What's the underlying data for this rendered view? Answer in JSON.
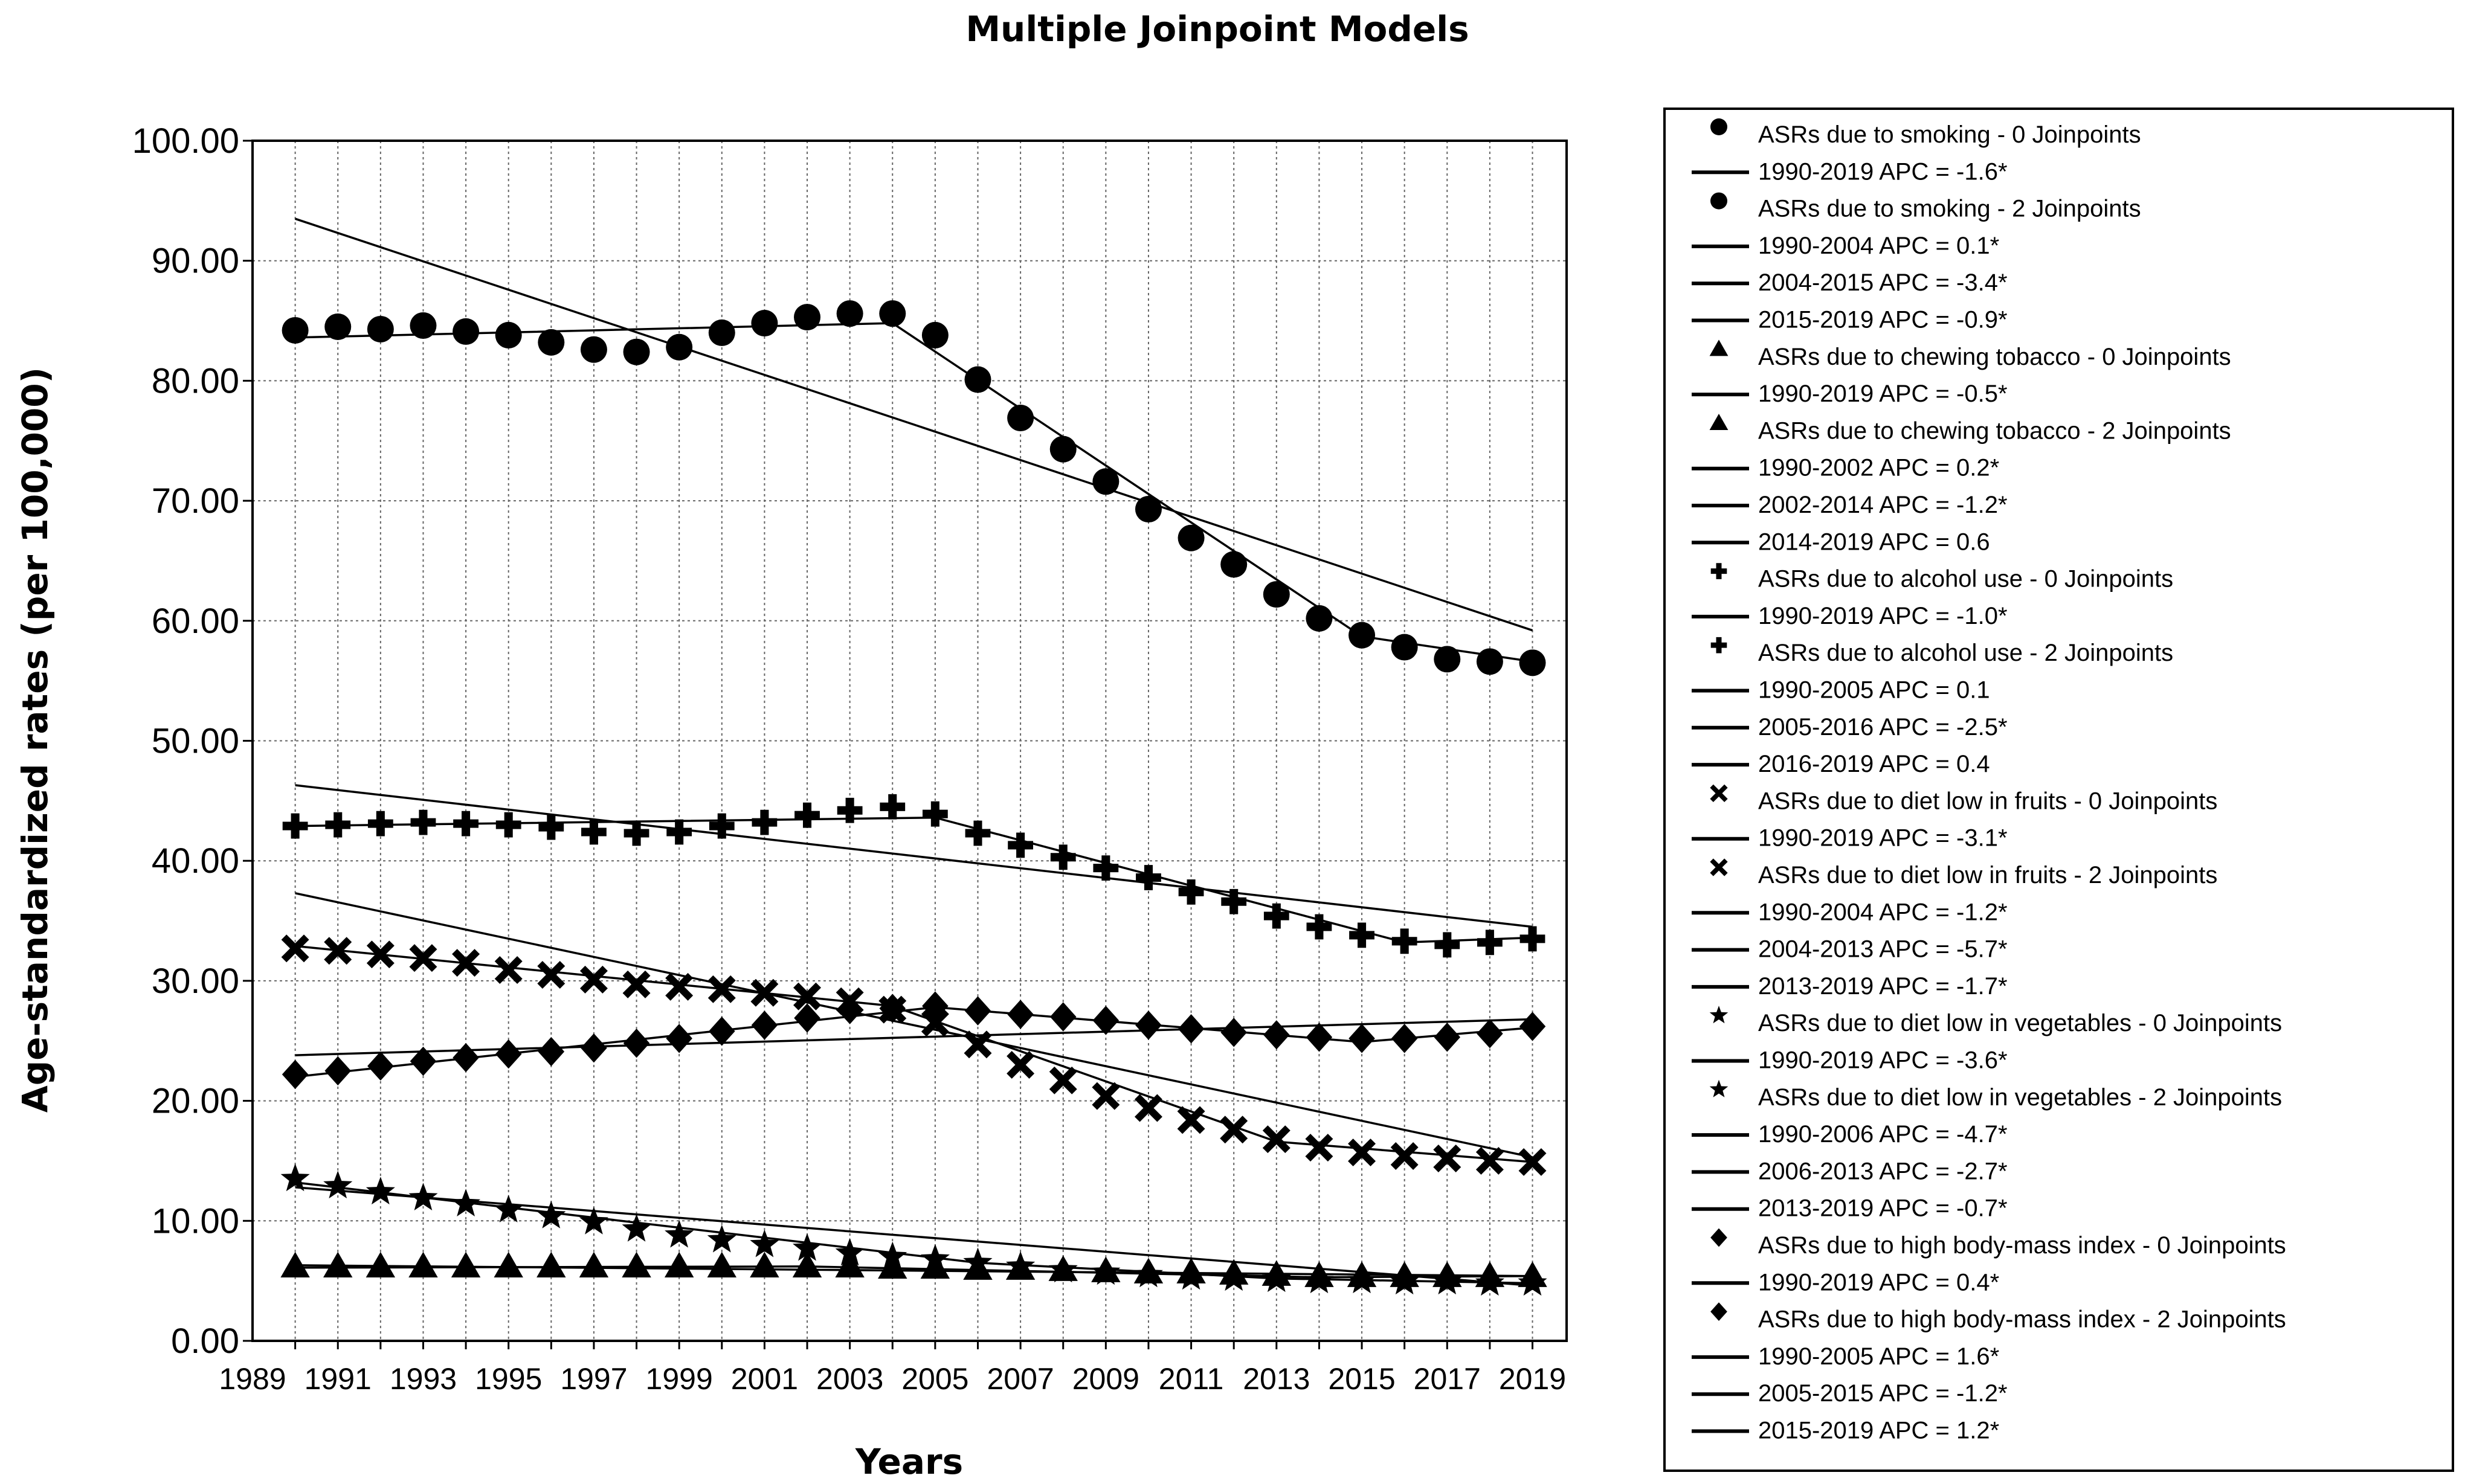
{
  "chart_data": {
    "type": "line",
    "title": "Multiple Joinpoint Models",
    "xlabel": "Years",
    "ylabel": "Age-standardized rates (per 100,000)",
    "xlim": [
      1989,
      2019
    ],
    "ylim": [
      0,
      100
    ],
    "grid": true,
    "legend_position": "right",
    "x_tick_labels": [
      "1989",
      "1991",
      "1993",
      "1995",
      "1997",
      "1999",
      "2001",
      "2003",
      "2005",
      "2007",
      "2009",
      "2011",
      "2013",
      "2015",
      "2017",
      "2019"
    ],
    "x_tick_values": [
      1989,
      1991,
      1993,
      1995,
      1997,
      1999,
      2001,
      2003,
      2005,
      2007,
      2009,
      2011,
      2013,
      2015,
      2017,
      2019
    ],
    "y_tick_labels": [
      "0.00",
      "10.00",
      "20.00",
      "30.00",
      "40.00",
      "50.00",
      "60.00",
      "70.00",
      "80.00",
      "90.00",
      "100.00"
    ],
    "y_tick_values": [
      0,
      10,
      20,
      30,
      40,
      50,
      60,
      70,
      80,
      90,
      100
    ],
    "x": [
      1990,
      1991,
      1992,
      1993,
      1994,
      1995,
      1996,
      1997,
      1998,
      1999,
      2000,
      2001,
      2002,
      2003,
      2004,
      2005,
      2006,
      2007,
      2008,
      2009,
      2010,
      2011,
      2012,
      2013,
      2014,
      2015,
      2016,
      2017,
      2018,
      2019
    ],
    "series": [
      {
        "name": "ASRs due to smoking",
        "marker": "circle",
        "values": [
          84.2,
          84.5,
          84.3,
          84.6,
          84.1,
          83.8,
          83.2,
          82.6,
          82.4,
          82.8,
          84.0,
          84.8,
          85.3,
          85.6,
          85.6,
          83.8,
          80.1,
          76.9,
          74.3,
          71.6,
          69.3,
          66.9,
          64.7,
          62.2,
          60.2,
          58.8,
          57.8,
          56.8,
          56.6,
          56.5
        ],
        "fit0": [
          [
            1990,
            93.5
          ],
          [
            2019,
            59.2
          ]
        ],
        "fit2": [
          [
            1990,
            83.6
          ],
          [
            2004,
            84.8
          ],
          [
            2015,
            58.7
          ],
          [
            2019,
            56.6
          ]
        ]
      },
      {
        "name": "ASRs due to chewing tobacco",
        "marker": "triangle",
        "values": [
          6.2,
          6.2,
          6.2,
          6.2,
          6.2,
          6.2,
          6.2,
          6.2,
          6.2,
          6.2,
          6.2,
          6.2,
          6.2,
          6.2,
          6.1,
          6.1,
          6.0,
          6.0,
          5.9,
          5.8,
          5.7,
          5.7,
          5.6,
          5.5,
          5.4,
          5.4,
          5.4,
          5.4,
          5.4,
          5.4
        ],
        "fit0": [
          [
            1990,
            6.3
          ],
          [
            2019,
            5.4
          ]
        ],
        "fit2": [
          [
            1990,
            6.1
          ],
          [
            2002,
            6.2
          ],
          [
            2014,
            5.3
          ],
          [
            2019,
            5.4
          ]
        ]
      },
      {
        "name": "ASRs due to alcohol use",
        "marker": "plus",
        "values": [
          42.9,
          43.0,
          43.1,
          43.2,
          43.1,
          43.0,
          42.8,
          42.4,
          42.3,
          42.4,
          42.9,
          43.2,
          43.8,
          44.2,
          44.5,
          43.9,
          42.3,
          41.3,
          40.3,
          39.4,
          38.6,
          37.4,
          36.6,
          35.4,
          34.5,
          33.8,
          33.3,
          33.0,
          33.2,
          33.5
        ],
        "fit0": [
          [
            1990,
            46.3
          ],
          [
            2019,
            34.5
          ]
        ],
        "fit2": [
          [
            1990,
            42.9
          ],
          [
            2005,
            43.6
          ],
          [
            2016,
            33.2
          ],
          [
            2019,
            33.6
          ]
        ]
      },
      {
        "name": "ASRs due to diet low in fruits",
        "marker": "x",
        "values": [
          32.7,
          32.5,
          32.2,
          31.9,
          31.5,
          30.9,
          30.5,
          30.1,
          29.7,
          29.5,
          29.3,
          29.0,
          28.7,
          28.3,
          27.6,
          26.5,
          24.7,
          23.0,
          21.7,
          20.4,
          19.4,
          18.4,
          17.6,
          16.8,
          16.1,
          15.7,
          15.4,
          15.2,
          15.0,
          14.9
        ],
        "fit0": [
          [
            1990,
            37.3
          ],
          [
            2019,
            15.3
          ]
        ],
        "fit2": [
          [
            1990,
            32.9
          ],
          [
            2004,
            27.9
          ],
          [
            2013,
            16.6
          ],
          [
            2019,
            14.9
          ]
        ]
      },
      {
        "name": "ASRs due to diet low in vegetables",
        "marker": "star",
        "values": [
          13.5,
          12.9,
          12.4,
          11.9,
          11.4,
          10.9,
          10.4,
          9.9,
          9.3,
          8.8,
          8.4,
          8.0,
          7.7,
          7.3,
          7.0,
          6.8,
          6.5,
          6.2,
          5.9,
          5.7,
          5.5,
          5.3,
          5.2,
          5.1,
          5.0,
          5.0,
          4.9,
          4.9,
          4.8,
          4.8
        ],
        "fit0": [
          [
            1990,
            12.8
          ],
          [
            2019,
            4.6
          ]
        ],
        "fit2": [
          [
            1990,
            13.2
          ],
          [
            2006,
            6.5
          ],
          [
            2013,
            5.2
          ],
          [
            2019,
            4.8
          ]
        ]
      },
      {
        "name": "ASRs due to high body-mass index",
        "marker": "diamond",
        "values": [
          22.2,
          22.5,
          22.9,
          23.3,
          23.6,
          23.9,
          24.1,
          24.4,
          24.8,
          25.2,
          25.8,
          26.3,
          26.9,
          27.6,
          27.7,
          27.9,
          27.5,
          27.2,
          27.0,
          26.7,
          26.3,
          26.0,
          25.7,
          25.5,
          25.3,
          25.2,
          25.2,
          25.3,
          25.6,
          26.2
        ],
        "fit0": [
          [
            1990,
            23.8
          ],
          [
            2019,
            26.8
          ]
        ],
        "fit2": [
          [
            1990,
            22.0
          ],
          [
            2005,
            27.8
          ],
          [
            2015,
            24.9
          ],
          [
            2019,
            26.1
          ]
        ]
      }
    ],
    "legend": [
      {
        "marker": "circle",
        "text": "ASRs due to smoking - 0 Joinpoints"
      },
      {
        "marker": "line",
        "text": "1990-2019 APC  = -1.6*"
      },
      {
        "marker": "circle",
        "text": "ASRs due to smoking - 2 Joinpoints"
      },
      {
        "marker": "line",
        "text": "1990-2004 APC  =  0.1*"
      },
      {
        "marker": "line",
        "text": "2004-2015 APC  = -3.4*"
      },
      {
        "marker": "line",
        "text": "2015-2019 APC  = -0.9*"
      },
      {
        "marker": "triangle",
        "text": "ASRs due to chewing tobacco - 0 Joinpoints"
      },
      {
        "marker": "line",
        "text": "1990-2019 APC  = -0.5*"
      },
      {
        "marker": "triangle",
        "text": "ASRs due to chewing tobacco - 2 Joinpoints"
      },
      {
        "marker": "line",
        "text": "1990-2002 APC  =  0.2*"
      },
      {
        "marker": "line",
        "text": "2002-2014 APC  = -1.2*"
      },
      {
        "marker": "line",
        "text": "2014-2019 APC  =  0.6"
      },
      {
        "marker": "plus",
        "text": "ASRs due to alcohol use - 0 Joinpoints"
      },
      {
        "marker": "line",
        "text": "1990-2019 APC  = -1.0*"
      },
      {
        "marker": "plus",
        "text": "ASRs due to alcohol use - 2 Joinpoints"
      },
      {
        "marker": "line",
        "text": "1990-2005 APC  =  0.1"
      },
      {
        "marker": "line",
        "text": "2005-2016 APC  = -2.5*"
      },
      {
        "marker": "line",
        "text": "2016-2019 APC  =  0.4"
      },
      {
        "marker": "x",
        "text": "ASRs due to diet low in fruits - 0 Joinpoints"
      },
      {
        "marker": "line",
        "text": "1990-2019 APC  = -3.1*"
      },
      {
        "marker": "x",
        "text": "ASRs due to diet low in fruits - 2 Joinpoints"
      },
      {
        "marker": "line",
        "text": "1990-2004 APC  = -1.2*"
      },
      {
        "marker": "line",
        "text": "2004-2013 APC  = -5.7*"
      },
      {
        "marker": "line",
        "text": "2013-2019 APC  = -1.7*"
      },
      {
        "marker": "star",
        "text": "ASRs due to diet low in vegetables - 0 Joinpoints"
      },
      {
        "marker": "line",
        "text": "1990-2019 APC  = -3.6*"
      },
      {
        "marker": "star",
        "text": "ASRs due to diet low in vegetables - 2 Joinpoints"
      },
      {
        "marker": "line",
        "text": "1990-2006 APC  = -4.7*"
      },
      {
        "marker": "line",
        "text": "2006-2013 APC  = -2.7*"
      },
      {
        "marker": "line",
        "text": "2013-2019 APC  = -0.7*"
      },
      {
        "marker": "diamond",
        "text": "ASRs due to high body-mass index - 0 Joinpoints"
      },
      {
        "marker": "line",
        "text": "1990-2019 APC  =  0.4*"
      },
      {
        "marker": "diamond",
        "text": "ASRs due to high body-mass index - 2 Joinpoints"
      },
      {
        "marker": "line",
        "text": "1990-2005 APC  =  1.6*"
      },
      {
        "marker": "line",
        "text": "2005-2015 APC  = -1.2*"
      },
      {
        "marker": "line",
        "text": "2015-2019 APC  =  1.2*"
      }
    ]
  }
}
